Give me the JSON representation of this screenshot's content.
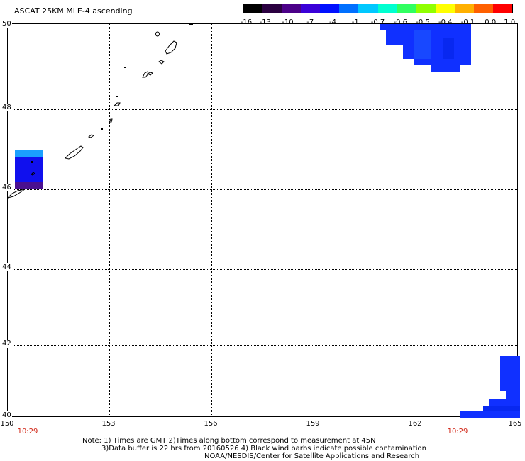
{
  "title": "ASCAT 25KM MLE-4 ascending",
  "color_scale": {
    "labels": [
      "-16",
      "-13",
      "-10",
      "-7",
      "-4",
      "-1",
      "-0.7",
      "-0.6",
      "-0.5",
      "-0.4",
      "-0.1",
      "0.0",
      "1.0"
    ],
    "colors": [
      "#000000",
      "#2a0040",
      "#4b0088",
      "#3a00d8",
      "#0010ff",
      "#0070ff",
      "#00c8ff",
      "#00ffd0",
      "#30ff60",
      "#90ff00",
      "#ffff00",
      "#ffb000",
      "#ff6000",
      "#ff0000"
    ]
  },
  "map": {
    "lat_labels": [
      "50",
      "48",
      "46",
      "44",
      "42",
      "40"
    ],
    "lon_labels": [
      "150",
      "153",
      "156",
      "159",
      "162",
      "165"
    ],
    "time_labels": [
      "10:29",
      "10:29"
    ]
  },
  "notes": {
    "line1": "Note: 1) Times are GMT 2)Times along bottom correspond to measurement at 45N",
    "line2": "3)Data buffer is 22 hrs from 20160526 4) Black wind barbs indicate possible contamination",
    "line3": "NOAA/NESDIS/Center for Satellite Applications and Research"
  }
}
